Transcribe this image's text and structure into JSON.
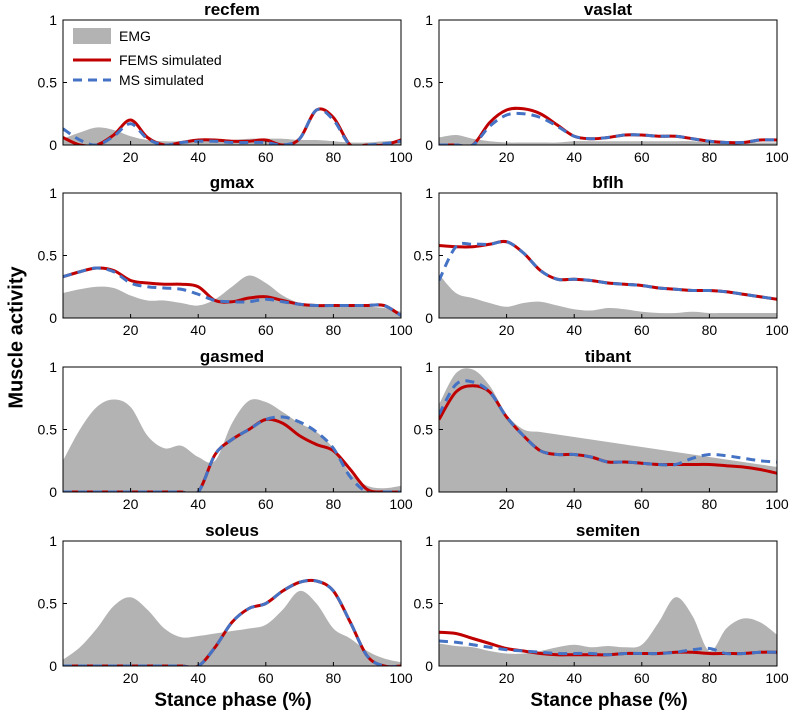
{
  "figure": {
    "ylabel": "Muscle activity",
    "xlabel_left": "Stance phase (%)",
    "xlabel_right": "Stance phase (%)"
  },
  "legend": {
    "entries": [
      "EMG",
      "FEMS simulated",
      "MS simulated"
    ],
    "placement": "top-left of first panel"
  },
  "colors": {
    "emg_fill": "#b3b3b3",
    "fems_line": "#c00000",
    "ms_line": "#4472c4",
    "axis": "#000000"
  },
  "chart_data": [
    {
      "type": "line",
      "title": "recfem",
      "xlim": [
        0,
        100
      ],
      "ylim": [
        0,
        1
      ],
      "xticks": [
        20,
        40,
        60,
        80,
        100
      ],
      "yticks": [
        0,
        0.5,
        1
      ],
      "x": [
        0,
        5,
        10,
        15,
        20,
        25,
        30,
        35,
        40,
        45,
        50,
        55,
        60,
        65,
        70,
        75,
        80,
        85,
        90,
        95,
        100
      ],
      "series": [
        {
          "name": "EMG",
          "style": "area",
          "values": [
            0.05,
            0.1,
            0.14,
            0.12,
            0.07,
            0.04,
            0.03,
            0.03,
            0.04,
            0.04,
            0.04,
            0.05,
            0.05,
            0.05,
            0.04,
            0.04,
            0.03,
            0.02,
            0.02,
            0.03,
            0.03
          ]
        },
        {
          "name": "FEMS simulated",
          "style": "solid",
          "values": [
            0.06,
            0.0,
            0.0,
            0.08,
            0.2,
            0.06,
            0.0,
            0.02,
            0.04,
            0.04,
            0.03,
            0.03,
            0.04,
            0.0,
            0.05,
            0.28,
            0.22,
            0.0,
            0.0,
            0.0,
            0.04
          ]
        },
        {
          "name": "MS simulated",
          "style": "dashed",
          "values": [
            0.13,
            0.04,
            0.0,
            0.07,
            0.17,
            0.05,
            0.0,
            0.02,
            0.03,
            0.03,
            0.02,
            0.02,
            0.02,
            0.0,
            0.05,
            0.28,
            0.2,
            0.0,
            0.0,
            0.01,
            0.03
          ]
        }
      ]
    },
    {
      "type": "line",
      "title": "vaslat",
      "xlim": [
        0,
        100
      ],
      "ylim": [
        0,
        1
      ],
      "xticks": [
        20,
        40,
        60,
        80,
        100
      ],
      "yticks": [
        0,
        0.5,
        1
      ],
      "x": [
        0,
        5,
        10,
        15,
        20,
        25,
        30,
        35,
        40,
        45,
        50,
        55,
        60,
        65,
        70,
        75,
        80,
        85,
        90,
        95,
        100
      ],
      "series": [
        {
          "name": "EMG",
          "style": "area",
          "values": [
            0.06,
            0.08,
            0.05,
            0.03,
            0.02,
            0.02,
            0.02,
            0.02,
            0.03,
            0.03,
            0.03,
            0.03,
            0.03,
            0.03,
            0.03,
            0.03,
            0.02,
            0.02,
            0.02,
            0.02,
            0.02
          ]
        },
        {
          "name": "FEMS simulated",
          "style": "solid",
          "values": [
            0.0,
            0.0,
            0.0,
            0.18,
            0.28,
            0.29,
            0.25,
            0.16,
            0.07,
            0.05,
            0.06,
            0.08,
            0.08,
            0.07,
            0.07,
            0.05,
            0.03,
            0.02,
            0.02,
            0.04,
            0.04
          ]
        },
        {
          "name": "MS simulated",
          "style": "dashed",
          "values": [
            0.0,
            0.0,
            0.0,
            0.15,
            0.24,
            0.25,
            0.22,
            0.15,
            0.07,
            0.05,
            0.06,
            0.08,
            0.08,
            0.07,
            0.07,
            0.05,
            0.03,
            0.02,
            0.02,
            0.04,
            0.04
          ]
        }
      ]
    },
    {
      "type": "line",
      "title": "gmax",
      "xlim": [
        0,
        100
      ],
      "ylim": [
        0,
        1
      ],
      "xticks": [
        20,
        40,
        60,
        80,
        100
      ],
      "yticks": [
        0,
        0.5,
        1
      ],
      "x": [
        0,
        5,
        10,
        15,
        20,
        25,
        30,
        35,
        40,
        45,
        50,
        55,
        60,
        65,
        70,
        75,
        80,
        85,
        90,
        95,
        100
      ],
      "series": [
        {
          "name": "EMG",
          "style": "area",
          "values": [
            0.2,
            0.23,
            0.25,
            0.24,
            0.18,
            0.14,
            0.14,
            0.12,
            0.1,
            0.15,
            0.25,
            0.34,
            0.28,
            0.18,
            0.12,
            0.1,
            0.09,
            0.09,
            0.09,
            0.08,
            0.05
          ]
        },
        {
          "name": "FEMS simulated",
          "style": "solid",
          "values": [
            0.33,
            0.37,
            0.4,
            0.38,
            0.3,
            0.28,
            0.27,
            0.27,
            0.25,
            0.14,
            0.13,
            0.16,
            0.17,
            0.14,
            0.11,
            0.1,
            0.1,
            0.1,
            0.1,
            0.1,
            0.02
          ]
        },
        {
          "name": "MS simulated",
          "style": "dashed",
          "values": [
            0.33,
            0.37,
            0.4,
            0.37,
            0.28,
            0.25,
            0.24,
            0.23,
            0.19,
            0.14,
            0.13,
            0.13,
            0.15,
            0.13,
            0.11,
            0.1,
            0.1,
            0.1,
            0.1,
            0.1,
            0.02
          ]
        }
      ]
    },
    {
      "type": "line",
      "title": "bflh",
      "xlim": [
        0,
        100
      ],
      "ylim": [
        0,
        1
      ],
      "xticks": [
        20,
        40,
        60,
        80,
        100
      ],
      "yticks": [
        0,
        0.5,
        1
      ],
      "x": [
        0,
        5,
        10,
        15,
        20,
        25,
        30,
        35,
        40,
        45,
        50,
        55,
        60,
        65,
        70,
        75,
        80,
        85,
        90,
        95,
        100
      ],
      "series": [
        {
          "name": "EMG",
          "style": "area",
          "values": [
            0.35,
            0.2,
            0.16,
            0.12,
            0.09,
            0.12,
            0.13,
            0.1,
            0.07,
            0.06,
            0.08,
            0.07,
            0.05,
            0.04,
            0.04,
            0.05,
            0.04,
            0.04,
            0.04,
            0.04,
            0.04
          ]
        },
        {
          "name": "FEMS simulated",
          "style": "solid",
          "values": [
            0.58,
            0.57,
            0.57,
            0.59,
            0.61,
            0.52,
            0.38,
            0.31,
            0.31,
            0.3,
            0.28,
            0.27,
            0.26,
            0.24,
            0.23,
            0.22,
            0.22,
            0.21,
            0.19,
            0.17,
            0.15
          ]
        },
        {
          "name": "MS simulated",
          "style": "dashed",
          "values": [
            0.3,
            0.57,
            0.59,
            0.59,
            0.61,
            0.52,
            0.38,
            0.31,
            0.31,
            0.3,
            0.28,
            0.27,
            0.26,
            0.24,
            0.23,
            0.22,
            0.22,
            0.21,
            0.19,
            0.17,
            0.15
          ]
        }
      ]
    },
    {
      "type": "line",
      "title": "gasmed",
      "xlim": [
        0,
        100
      ],
      "ylim": [
        0,
        1
      ],
      "xticks": [
        20,
        40,
        60,
        80,
        100
      ],
      "yticks": [
        0,
        0.5,
        1
      ],
      "x": [
        0,
        5,
        10,
        15,
        20,
        25,
        30,
        35,
        40,
        45,
        50,
        55,
        60,
        65,
        70,
        75,
        80,
        85,
        90,
        95,
        100
      ],
      "series": [
        {
          "name": "EMG",
          "style": "area",
          "values": [
            0.25,
            0.5,
            0.68,
            0.74,
            0.68,
            0.45,
            0.35,
            0.37,
            0.28,
            0.25,
            0.55,
            0.73,
            0.72,
            0.64,
            0.55,
            0.48,
            0.35,
            0.15,
            0.05,
            0.03,
            0.05
          ]
        },
        {
          "name": "FEMS simulated",
          "style": "solid",
          "values": [
            0.0,
            0.0,
            0.0,
            0.0,
            0.0,
            0.0,
            0.0,
            0.0,
            0.0,
            0.3,
            0.42,
            0.5,
            0.58,
            0.55,
            0.45,
            0.38,
            0.33,
            0.18,
            0.02,
            0.0,
            0.0
          ]
        },
        {
          "name": "MS simulated",
          "style": "dashed",
          "values": [
            0.0,
            0.0,
            0.0,
            0.0,
            0.0,
            0.0,
            0.0,
            0.0,
            0.0,
            0.3,
            0.42,
            0.5,
            0.58,
            0.6,
            0.56,
            0.48,
            0.35,
            0.12,
            0.0,
            0.0,
            0.0
          ]
        }
      ]
    },
    {
      "type": "line",
      "title": "tibant",
      "xlim": [
        0,
        100
      ],
      "ylim": [
        0,
        1
      ],
      "xticks": [
        20,
        40,
        60,
        80,
        100
      ],
      "yticks": [
        0,
        0.5,
        1
      ],
      "x": [
        0,
        5,
        10,
        15,
        20,
        25,
        30,
        35,
        40,
        45,
        50,
        55,
        60,
        65,
        70,
        75,
        80,
        85,
        90,
        95,
        100
      ],
      "series": [
        {
          "name": "EMG",
          "style": "area",
          "values": [
            0.7,
            0.95,
            0.98,
            0.85,
            0.62,
            0.5,
            0.48,
            0.46,
            0.44,
            0.42,
            0.4,
            0.38,
            0.36,
            0.34,
            0.32,
            0.3,
            0.28,
            0.26,
            0.24,
            0.22,
            0.2
          ]
        },
        {
          "name": "FEMS simulated",
          "style": "solid",
          "values": [
            0.58,
            0.8,
            0.85,
            0.8,
            0.6,
            0.45,
            0.33,
            0.3,
            0.3,
            0.28,
            0.24,
            0.24,
            0.23,
            0.22,
            0.22,
            0.22,
            0.22,
            0.21,
            0.2,
            0.18,
            0.15
          ]
        },
        {
          "name": "MS simulated",
          "style": "dashed",
          "values": [
            0.62,
            0.86,
            0.88,
            0.8,
            0.6,
            0.45,
            0.33,
            0.3,
            0.3,
            0.28,
            0.24,
            0.24,
            0.23,
            0.22,
            0.22,
            0.27,
            0.3,
            0.29,
            0.27,
            0.25,
            0.24
          ]
        }
      ]
    },
    {
      "type": "line",
      "title": "soleus",
      "xlim": [
        0,
        100
      ],
      "ylim": [
        0,
        1
      ],
      "xticks": [
        20,
        40,
        60,
        80,
        100
      ],
      "yticks": [
        0,
        0.5,
        1
      ],
      "x": [
        0,
        5,
        10,
        15,
        20,
        25,
        30,
        35,
        40,
        45,
        50,
        55,
        60,
        65,
        70,
        75,
        80,
        85,
        90,
        95,
        100
      ],
      "series": [
        {
          "name": "EMG",
          "style": "area",
          "values": [
            0.05,
            0.15,
            0.3,
            0.48,
            0.55,
            0.45,
            0.3,
            0.23,
            0.24,
            0.26,
            0.28,
            0.3,
            0.33,
            0.45,
            0.6,
            0.5,
            0.3,
            0.22,
            0.12,
            0.06,
            0.03
          ]
        },
        {
          "name": "FEMS simulated",
          "style": "solid",
          "values": [
            0.0,
            0.0,
            0.0,
            0.0,
            0.0,
            0.0,
            0.0,
            0.0,
            0.0,
            0.15,
            0.35,
            0.46,
            0.5,
            0.6,
            0.67,
            0.68,
            0.6,
            0.35,
            0.08,
            0.0,
            0.0
          ]
        },
        {
          "name": "MS simulated",
          "style": "dashed",
          "values": [
            0.0,
            0.0,
            0.0,
            0.0,
            0.0,
            0.0,
            0.0,
            0.0,
            0.0,
            0.15,
            0.35,
            0.46,
            0.5,
            0.6,
            0.67,
            0.68,
            0.6,
            0.35,
            0.08,
            0.0,
            0.0
          ]
        }
      ]
    },
    {
      "type": "line",
      "title": "semiten",
      "xlim": [
        0,
        100
      ],
      "ylim": [
        0,
        1
      ],
      "xticks": [
        20,
        40,
        60,
        80,
        100
      ],
      "yticks": [
        0,
        0.5,
        1
      ],
      "x": [
        0,
        5,
        10,
        15,
        20,
        25,
        30,
        35,
        40,
        45,
        50,
        55,
        60,
        65,
        70,
        75,
        80,
        85,
        90,
        95,
        100
      ],
      "series": [
        {
          "name": "EMG",
          "style": "area",
          "values": [
            0.18,
            0.16,
            0.15,
            0.12,
            0.1,
            0.1,
            0.12,
            0.15,
            0.17,
            0.15,
            0.16,
            0.15,
            0.17,
            0.35,
            0.55,
            0.4,
            0.12,
            0.3,
            0.38,
            0.35,
            0.25
          ]
        },
        {
          "name": "FEMS simulated",
          "style": "solid",
          "values": [
            0.27,
            0.26,
            0.22,
            0.18,
            0.14,
            0.12,
            0.1,
            0.09,
            0.09,
            0.09,
            0.09,
            0.1,
            0.1,
            0.1,
            0.11,
            0.11,
            0.1,
            0.1,
            0.1,
            0.11,
            0.11
          ]
        },
        {
          "name": "MS simulated",
          "style": "dashed",
          "values": [
            0.2,
            0.19,
            0.17,
            0.15,
            0.13,
            0.12,
            0.11,
            0.1,
            0.1,
            0.1,
            0.09,
            0.1,
            0.1,
            0.1,
            0.11,
            0.13,
            0.14,
            0.1,
            0.1,
            0.11,
            0.11
          ]
        }
      ]
    }
  ]
}
